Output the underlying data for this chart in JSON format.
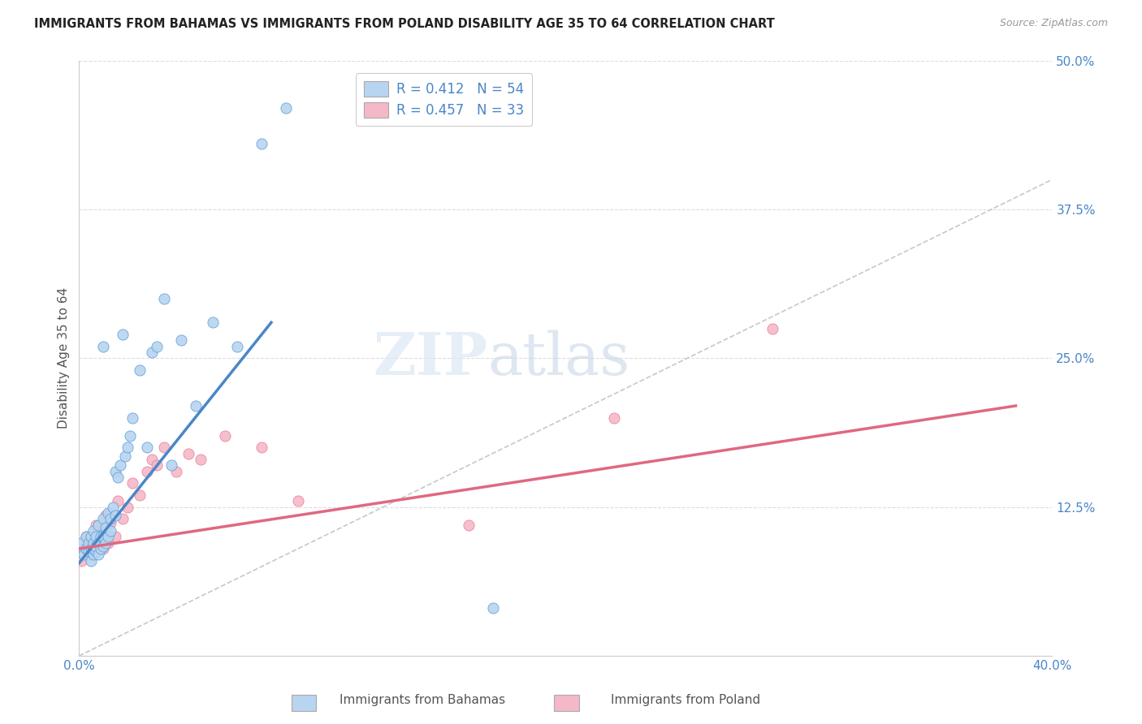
{
  "title": "IMMIGRANTS FROM BAHAMAS VS IMMIGRANTS FROM POLAND DISABILITY AGE 35 TO 64 CORRELATION CHART",
  "source": "Source: ZipAtlas.com",
  "ylabel": "Disability Age 35 to 64",
  "xlim": [
    0.0,
    0.4
  ],
  "ylim": [
    0.0,
    0.5
  ],
  "xticks": [
    0.0,
    0.1,
    0.2,
    0.3,
    0.4
  ],
  "xticklabels": [
    "0.0%",
    "",
    "",
    "",
    "40.0%"
  ],
  "yticks": [
    0.0,
    0.125,
    0.25,
    0.375,
    0.5
  ],
  "yticklabels": [
    "",
    "12.5%",
    "25.0%",
    "37.5%",
    "50.0%"
  ],
  "bahamas_color": "#b8d4f0",
  "poland_color": "#f5b8c8",
  "bahamas_edge_color": "#5a9fd4",
  "poland_edge_color": "#e8809a",
  "bahamas_line_color": "#4a86c8",
  "poland_line_color": "#e06880",
  "diagonal_color": "#c8c8c8",
  "watermark_zip": "ZIP",
  "watermark_atlas": "atlas",
  "legend_R1": "R = 0.412",
  "legend_N1": "N = 54",
  "legend_R2": "R = 0.457",
  "legend_N2": "N = 33",
  "bahamas_x": [
    0.001,
    0.002,
    0.003,
    0.003,
    0.004,
    0.004,
    0.005,
    0.005,
    0.005,
    0.006,
    0.006,
    0.006,
    0.006,
    0.007,
    0.007,
    0.007,
    0.008,
    0.008,
    0.008,
    0.009,
    0.009,
    0.01,
    0.01,
    0.01,
    0.011,
    0.011,
    0.012,
    0.012,
    0.013,
    0.013,
    0.014,
    0.015,
    0.015,
    0.016,
    0.017,
    0.018,
    0.019,
    0.02,
    0.021,
    0.022,
    0.025,
    0.028,
    0.03,
    0.032,
    0.035,
    0.038,
    0.042,
    0.048,
    0.055,
    0.065,
    0.075,
    0.085,
    0.17,
    0.01
  ],
  "bahamas_y": [
    0.095,
    0.085,
    0.09,
    0.1,
    0.088,
    0.095,
    0.08,
    0.09,
    0.1,
    0.085,
    0.09,
    0.095,
    0.105,
    0.088,
    0.092,
    0.1,
    0.085,
    0.095,
    0.11,
    0.09,
    0.1,
    0.092,
    0.1,
    0.115,
    0.095,
    0.108,
    0.1,
    0.12,
    0.105,
    0.115,
    0.125,
    0.118,
    0.155,
    0.15,
    0.16,
    0.27,
    0.168,
    0.175,
    0.185,
    0.2,
    0.24,
    0.175,
    0.255,
    0.26,
    0.3,
    0.16,
    0.265,
    0.21,
    0.28,
    0.26,
    0.43,
    0.46,
    0.04,
    0.26
  ],
  "poland_x": [
    0.001,
    0.002,
    0.003,
    0.004,
    0.005,
    0.005,
    0.006,
    0.007,
    0.008,
    0.009,
    0.01,
    0.011,
    0.012,
    0.013,
    0.015,
    0.016,
    0.018,
    0.02,
    0.022,
    0.025,
    0.028,
    0.03,
    0.032,
    0.035,
    0.04,
    0.045,
    0.05,
    0.06,
    0.075,
    0.09,
    0.16,
    0.22,
    0.285
  ],
  "poland_y": [
    0.08,
    0.09,
    0.1,
    0.095,
    0.085,
    0.095,
    0.1,
    0.11,
    0.105,
    0.095,
    0.09,
    0.118,
    0.095,
    0.112,
    0.1,
    0.13,
    0.115,
    0.125,
    0.145,
    0.135,
    0.155,
    0.165,
    0.16,
    0.175,
    0.155,
    0.17,
    0.165,
    0.185,
    0.175,
    0.13,
    0.11,
    0.2,
    0.275
  ],
  "bahamas_line_x": [
    0.0,
    0.079
  ],
  "bahamas_line_y": [
    0.078,
    0.28
  ],
  "poland_line_x": [
    0.0,
    0.385
  ],
  "poland_line_y": [
    0.09,
    0.21
  ]
}
